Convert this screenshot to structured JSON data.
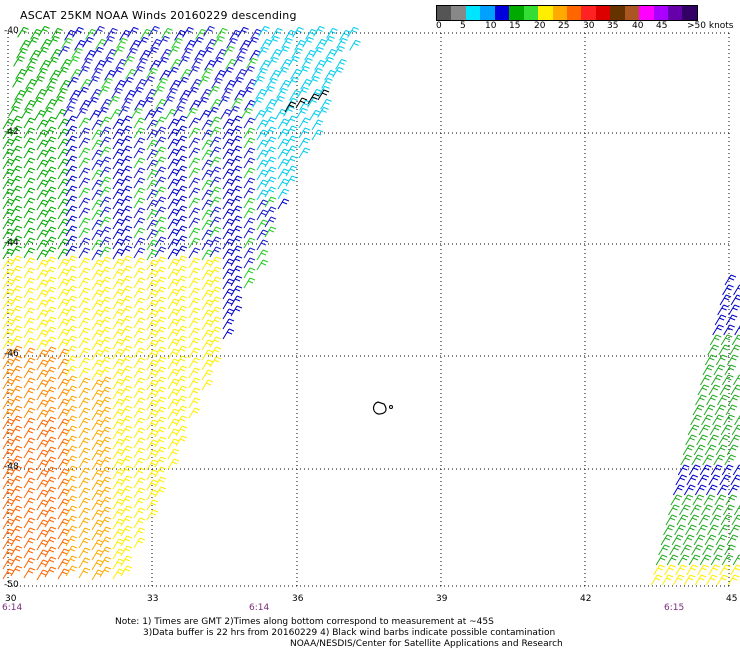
{
  "title": "ASCAT 25KM NOAA Winds 20160229 descending",
  "legend": {
    "labels": [
      "0",
      "5",
      "10",
      "15",
      "20",
      "25",
      "30",
      "35",
      "40",
      "45",
      ">50 knots"
    ],
    "colors": [
      "#555555",
      "#888888",
      "#00e5ff",
      "#00a0ff",
      "#0000dd",
      "#00aa00",
      "#33dd33",
      "#ffee00",
      "#ffaa00",
      "#ff6600",
      "#ff2222",
      "#dd0000",
      "#663300",
      "#aa5522",
      "#ff00ff",
      "#aa00ff",
      "#6600aa",
      "#330066"
    ]
  },
  "axes": {
    "lat_labels": [
      "-40",
      "-42",
      "-44",
      "-46",
      "-48",
      "-50"
    ],
    "lon_labels": [
      "30",
      "33",
      "36",
      "39",
      "42",
      "45"
    ]
  },
  "times": [
    "6:14",
    "6:14",
    "6:15"
  ],
  "notes": [
    "Note: 1) Times are GMT 2)Times along bottom correspond to measurement at ~45S",
    "3)Data buffer is 22 hrs from 20160229 4) Black wind barbs indicate possible contamination",
    "NOAA/NESDIS/Center for Satellite Applications and Research"
  ]
}
